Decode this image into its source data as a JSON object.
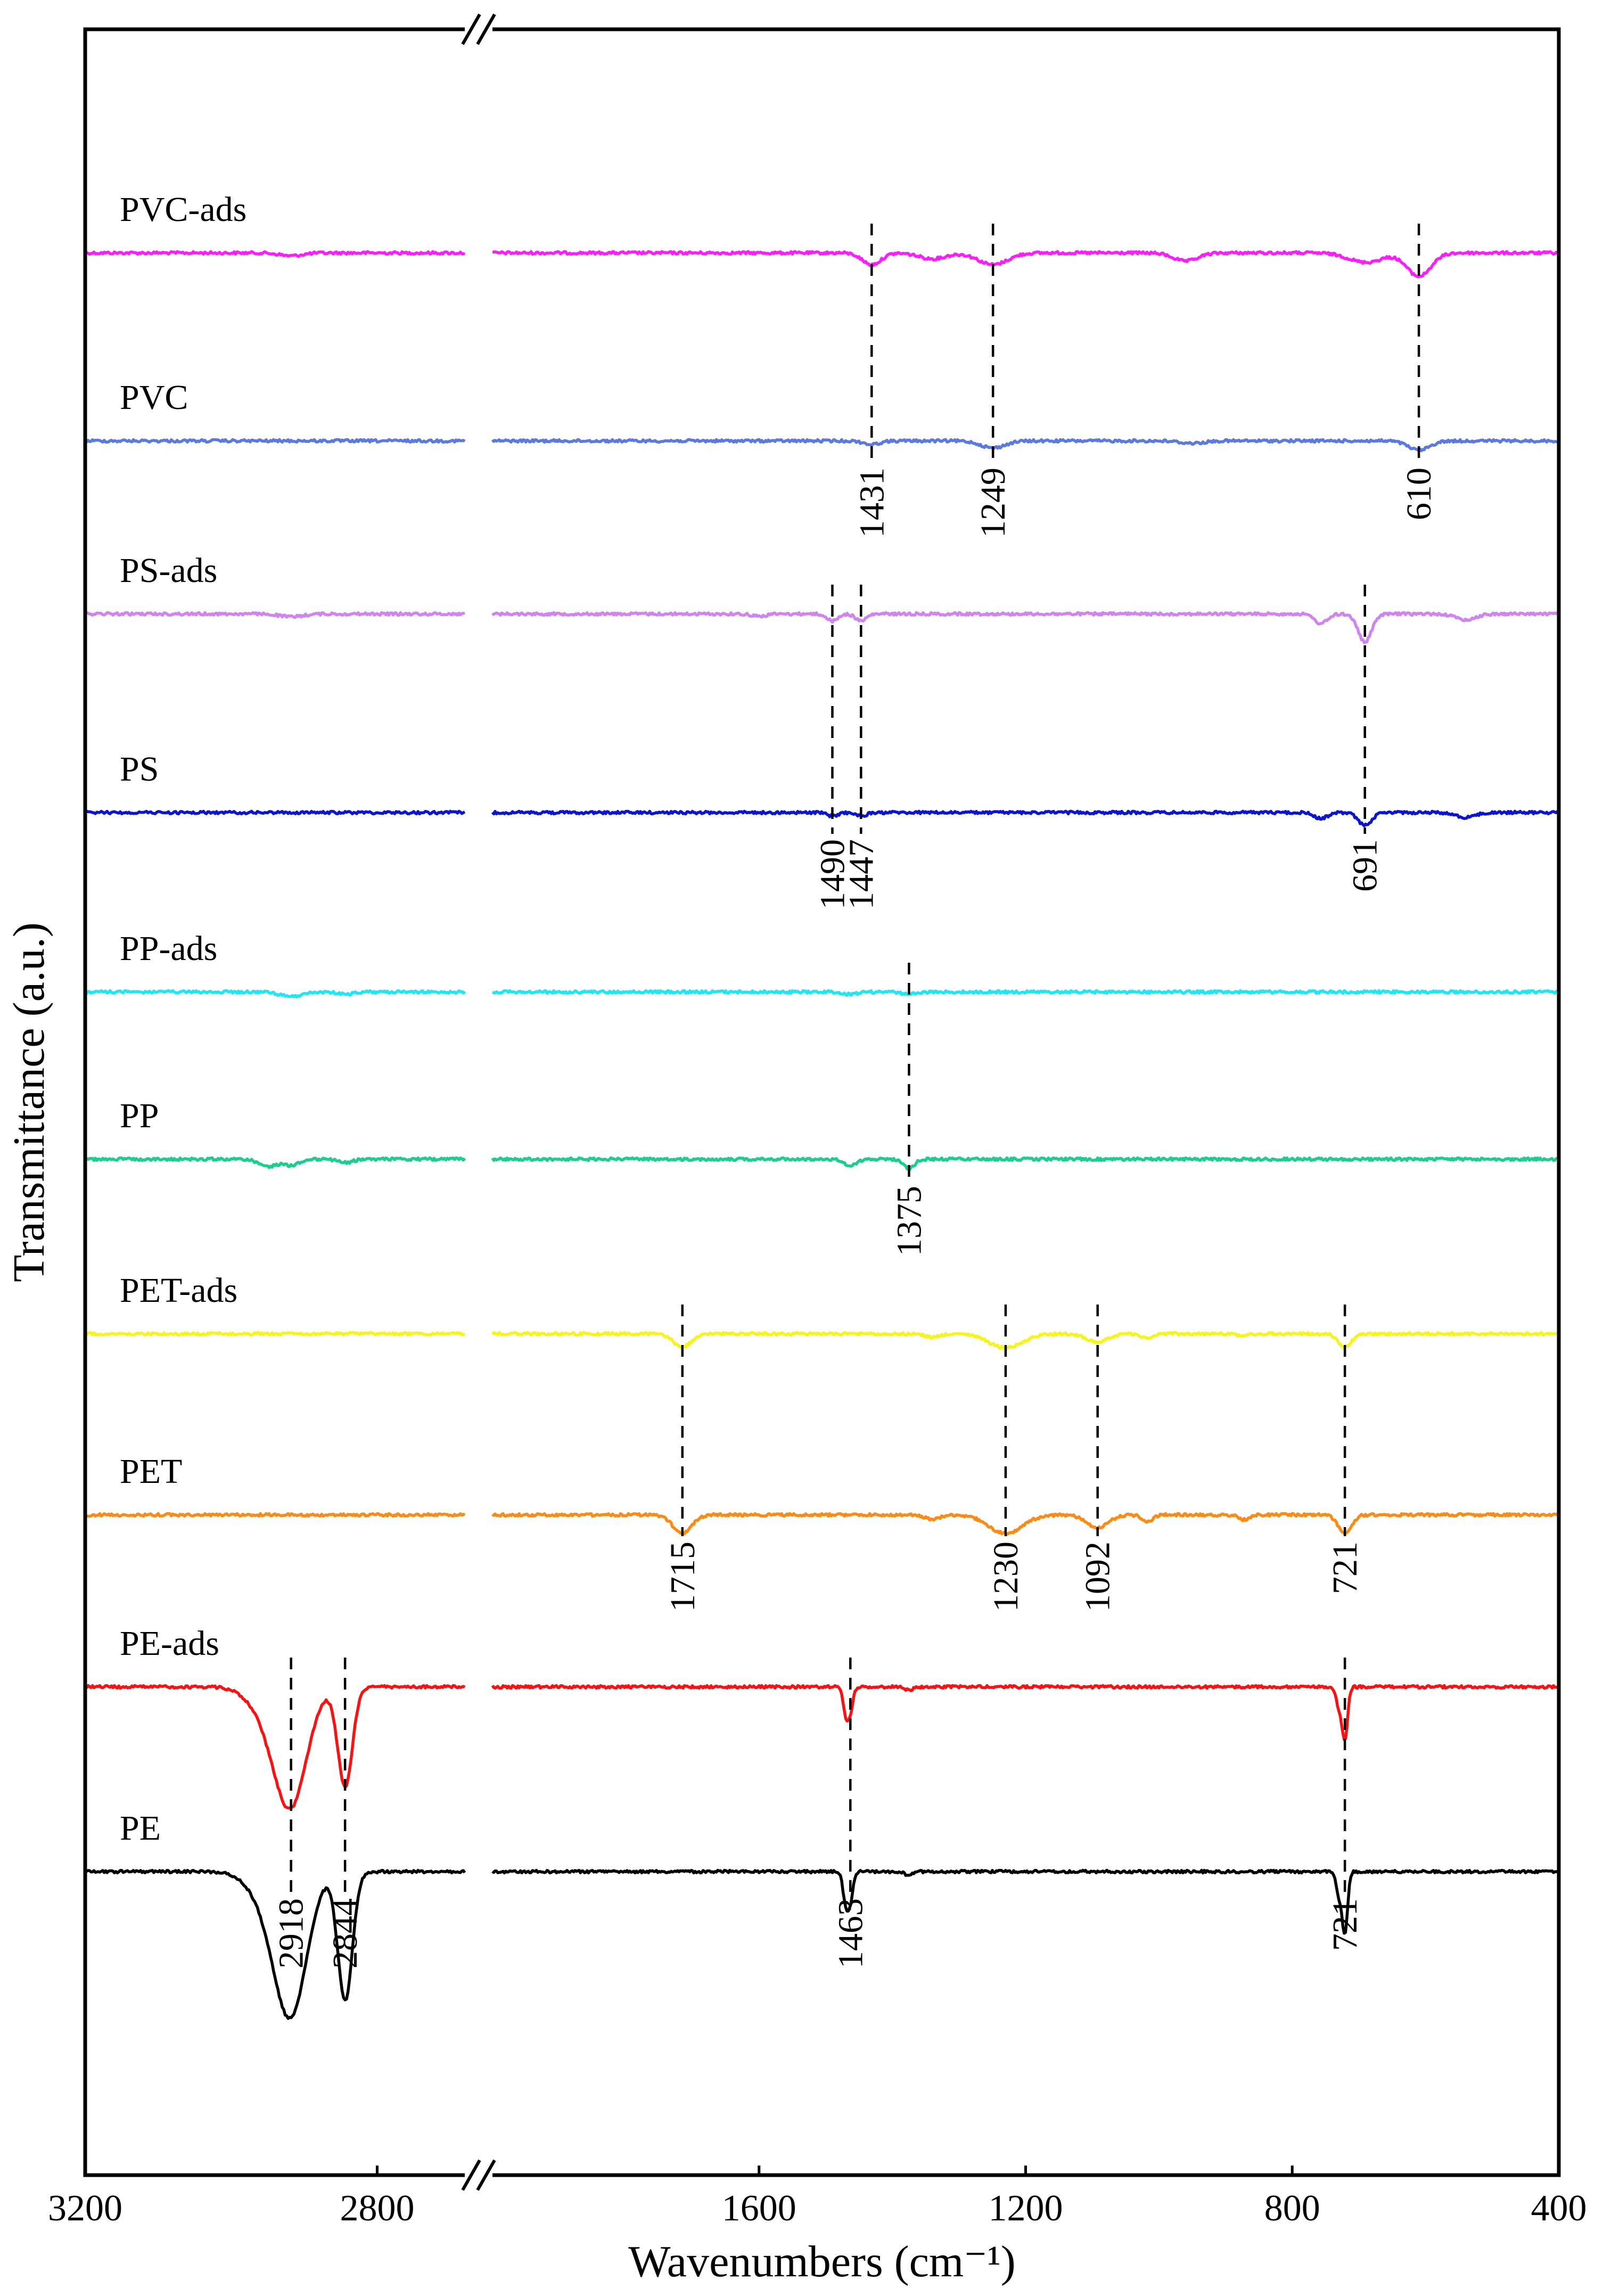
{
  "chart_data": {
    "type": "line",
    "xlabel": "Wavenumbers (cm⁻¹)",
    "ylabel": "Transmittance (a.u.)",
    "x_axis": {
      "segments": [
        {
          "from": 3200,
          "to": 2680,
          "ticks": [
            3200,
            2800
          ]
        },
        {
          "from": 2000,
          "to": 400,
          "ticks": [
            1600,
            1200,
            800,
            400
          ]
        }
      ],
      "reversed": true,
      "broken": true
    },
    "grid": false,
    "legend": "inline labels at left",
    "series": [
      {
        "name": "PVC-ads",
        "color": "#ff1aff",
        "bands": [
          {
            "x": 2918,
            "depth": 0.25,
            "width": 15
          },
          {
            "x": 1431,
            "depth": 1.0,
            "width": 14
          },
          {
            "x": 1340,
            "depth": 0.5,
            "width": 20
          },
          {
            "x": 1249,
            "depth": 1.0,
            "width": 22
          },
          {
            "x": 960,
            "depth": 0.7,
            "width": 18
          },
          {
            "x": 690,
            "depth": 0.8,
            "width": 25
          },
          {
            "x": 610,
            "depth": 2.0,
            "width": 18
          }
        ]
      },
      {
        "name": "PVC",
        "color": "#5b79e3",
        "bands": [
          {
            "x": 1431,
            "depth": 0.3,
            "width": 12
          },
          {
            "x": 1249,
            "depth": 0.6,
            "width": 18
          },
          {
            "x": 950,
            "depth": 0.2,
            "width": 18
          },
          {
            "x": 610,
            "depth": 0.8,
            "width": 16
          }
        ]
      },
      {
        "name": "PS-ads",
        "color": "#d084f0",
        "bands": [
          {
            "x": 2918,
            "depth": 0.25,
            "width": 15
          },
          {
            "x": 1600,
            "depth": 0.2,
            "width": 10
          },
          {
            "x": 1490,
            "depth": 0.6,
            "width": 8
          },
          {
            "x": 1447,
            "depth": 0.6,
            "width": 8
          },
          {
            "x": 757,
            "depth": 0.8,
            "width": 10
          },
          {
            "x": 691,
            "depth": 2.4,
            "width": 10
          },
          {
            "x": 540,
            "depth": 0.5,
            "width": 15
          }
        ]
      },
      {
        "name": "PS",
        "color": "#0a14d4",
        "bands": [
          {
            "x": 1490,
            "depth": 0.3,
            "width": 8
          },
          {
            "x": 1447,
            "depth": 0.3,
            "width": 8
          },
          {
            "x": 757,
            "depth": 0.5,
            "width": 10
          },
          {
            "x": 691,
            "depth": 1.1,
            "width": 10
          },
          {
            "x": 540,
            "depth": 0.4,
            "width": 15
          }
        ]
      },
      {
        "name": "PP-ads",
        "color": "#1ae8f5",
        "bands": [
          {
            "x": 2918,
            "depth": 0.4,
            "width": 15
          },
          {
            "x": 2844,
            "depth": 0.2,
            "width": 10
          },
          {
            "x": 1463,
            "depth": 0.2,
            "width": 10
          },
          {
            "x": 1375,
            "depth": 0.2,
            "width": 10
          }
        ]
      },
      {
        "name": "PP",
        "color": "#17d08e",
        "bands": [
          {
            "x": 2950,
            "depth": 0.6,
            "width": 12
          },
          {
            "x": 2918,
            "depth": 0.5,
            "width": 12
          },
          {
            "x": 2844,
            "depth": 0.3,
            "width": 10
          },
          {
            "x": 1463,
            "depth": 0.5,
            "width": 10
          },
          {
            "x": 1375,
            "depth": 0.8,
            "width": 8
          }
        ]
      },
      {
        "name": "PET-ads",
        "color": "#f5f51a",
        "bands": [
          {
            "x": 1715,
            "depth": 1.1,
            "width": 14
          },
          {
            "x": 1340,
            "depth": 0.3,
            "width": 10
          },
          {
            "x": 1230,
            "depth": 1.2,
            "width": 25
          },
          {
            "x": 1092,
            "depth": 0.7,
            "width": 16
          },
          {
            "x": 1017,
            "depth": 0.4,
            "width": 8
          },
          {
            "x": 873,
            "depth": 0.2,
            "width": 8
          },
          {
            "x": 721,
            "depth": 1.1,
            "width": 10
          }
        ]
      },
      {
        "name": "PET",
        "color": "#ff8a12",
        "bands": [
          {
            "x": 1715,
            "depth": 1.6,
            "width": 14
          },
          {
            "x": 1340,
            "depth": 0.4,
            "width": 10
          },
          {
            "x": 1230,
            "depth": 1.6,
            "width": 25
          },
          {
            "x": 1092,
            "depth": 1.1,
            "width": 16
          },
          {
            "x": 1017,
            "depth": 0.6,
            "width": 8
          },
          {
            "x": 873,
            "depth": 0.4,
            "width": 8
          },
          {
            "x": 721,
            "depth": 1.6,
            "width": 10
          }
        ]
      },
      {
        "name": "PE-ads",
        "color": "#ff1010",
        "bands": [
          {
            "x": 2950,
            "depth": 2.0,
            "width": 25
          },
          {
            "x": 2918,
            "depth": 9.5,
            "width": 22
          },
          {
            "x": 2844,
            "depth": 8.5,
            "width": 10
          },
          {
            "x": 1470,
            "depth": 2.2,
            "width": 4
          },
          {
            "x": 1463,
            "depth": 2.0,
            "width": 4
          },
          {
            "x": 1375,
            "depth": 0.3,
            "width": 6
          },
          {
            "x": 730,
            "depth": 1.8,
            "width": 4
          },
          {
            "x": 721,
            "depth": 4.5,
            "width": 4
          }
        ]
      },
      {
        "name": "PE",
        "color": "#000000",
        "bands": [
          {
            "x": 2950,
            "depth": 2.2,
            "width": 25
          },
          {
            "x": 2918,
            "depth": 11.5,
            "width": 22
          },
          {
            "x": 2844,
            "depth": 11.0,
            "width": 10
          },
          {
            "x": 1470,
            "depth": 2.6,
            "width": 4
          },
          {
            "x": 1463,
            "depth": 2.4,
            "width": 4
          },
          {
            "x": 1375,
            "depth": 0.3,
            "width": 6
          },
          {
            "x": 730,
            "depth": 2.0,
            "width": 4
          },
          {
            "x": 721,
            "depth": 5.2,
            "width": 4
          }
        ]
      }
    ],
    "annotations": [
      {
        "label": "1431",
        "x": 1431,
        "from_series": 0,
        "to_series": 1
      },
      {
        "label": "1249",
        "x": 1249,
        "from_series": 0,
        "to_series": 1
      },
      {
        "label": "610",
        "x": 610,
        "from_series": 0,
        "to_series": 1
      },
      {
        "label": "1490",
        "x": 1490,
        "from_series": 2,
        "to_series": 3
      },
      {
        "label": "1447",
        "x": 1447,
        "from_series": 2,
        "to_series": 3
      },
      {
        "label": "691",
        "x": 691,
        "from_series": 2,
        "to_series": 3
      },
      {
        "label": "1375",
        "x": 1375,
        "from_series": 4,
        "to_series": 5
      },
      {
        "label": "1715",
        "x": 1715,
        "from_series": 6,
        "to_series": 7
      },
      {
        "label": "1230",
        "x": 1230,
        "from_series": 6,
        "to_series": 7
      },
      {
        "label": "1092",
        "x": 1092,
        "from_series": 6,
        "to_series": 7
      },
      {
        "label": "721",
        "x": 721,
        "from_series": 6,
        "to_series": 7
      },
      {
        "label": "2918",
        "x": 2918,
        "from_series": 8,
        "to_series": 9
      },
      {
        "label": "2844",
        "x": 2844,
        "from_series": 8,
        "to_series": 9
      },
      {
        "label": "1463",
        "x": 1463,
        "from_series": 8,
        "to_series": 9
      },
      {
        "label": "721",
        "x": 721,
        "from_series": 8,
        "to_series": 9
      }
    ]
  }
}
